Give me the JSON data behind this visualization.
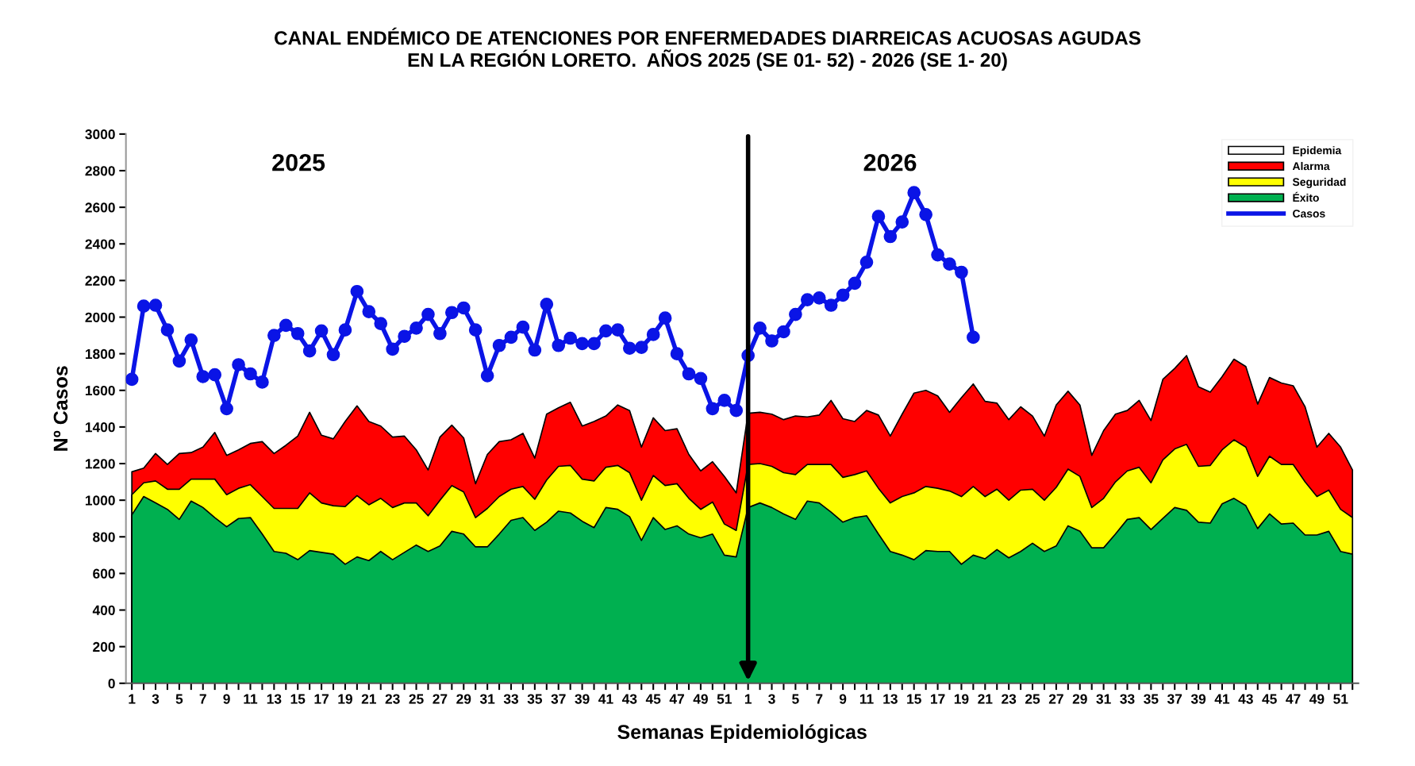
{
  "chart_data": {
    "type": "area",
    "title": "CANAL ENDÉMICO DE ATENCIONES POR ENFERMEDADES DIARREICAS ACUOSAS AGUDAS\nEN LA REGIÓN LORETO.  AÑOS 2025 (SE 01- 52) - 2026 (SE 1- 20)",
    "xlabel": "Semanas Epidemiológicas",
    "ylabel": "Nº Casos",
    "annotations": [
      "2025",
      "2026"
    ],
    "categories": [
      "1",
      null,
      "3",
      null,
      "5",
      null,
      "7",
      null,
      "9",
      null,
      "11",
      null,
      "13",
      null,
      "15",
      null,
      "17",
      null,
      "19",
      null,
      "21",
      null,
      "23",
      null,
      "25",
      null,
      "27",
      null,
      "29",
      null,
      "31",
      null,
      "33",
      null,
      "35",
      null,
      "37",
      null,
      "39",
      null,
      "41",
      null,
      "43",
      null,
      "45",
      null,
      "47",
      null,
      "49",
      null,
      "51",
      null,
      "1",
      null,
      "3",
      null,
      "5",
      null,
      "7",
      null,
      "9",
      null,
      "11",
      null,
      "13",
      null,
      "15",
      null,
      "17",
      null,
      "19",
      null,
      "21",
      null,
      "23",
      null,
      "25",
      null,
      "27",
      null,
      "29",
      null,
      "31",
      null,
      "33",
      null,
      "35",
      null,
      "37",
      null,
      "39",
      null,
      "41",
      null,
      "43",
      null,
      "45",
      null,
      "47",
      null,
      "49",
      null,
      "51",
      null
    ],
    "series": [
      {
        "name": "Epidemia",
        "color": "#ffffff",
        "values": [
          null,
          null,
          null,
          null,
          null,
          null,
          null,
          null,
          null,
          null,
          null,
          null,
          null,
          null,
          null,
          null,
          null,
          null,
          null,
          null,
          null,
          null,
          null,
          null,
          null,
          null,
          null,
          null,
          null,
          null,
          null,
          null,
          null,
          null,
          null,
          null,
          null,
          null,
          null,
          null,
          null,
          null,
          null,
          null,
          null,
          null,
          null,
          null,
          null,
          null,
          null,
          null,
          null,
          null,
          null,
          null,
          null,
          null,
          null,
          null,
          null,
          null,
          null,
          null,
          null,
          null,
          null,
          null,
          null,
          null,
          null,
          null,
          null,
          null,
          null,
          null,
          null,
          null,
          null,
          null,
          null,
          null,
          null,
          null,
          null,
          null,
          null,
          null,
          null,
          null,
          null,
          null,
          null,
          null,
          null,
          null,
          null,
          null,
          null,
          null,
          null,
          null,
          null,
          null
        ]
      },
      {
        "name": "Alarma",
        "color": "#ff0000",
        "values": [
          1155,
          1175,
          1255,
          1195,
          1255,
          1260,
          1290,
          1370,
          1245,
          1275,
          1310,
          1320,
          1255,
          1300,
          1350,
          1480,
          1355,
          1335,
          1430,
          1515,
          1430,
          1405,
          1345,
          1350,
          1275,
          1165,
          1345,
          1410,
          1340,
          1090,
          1250,
          1320,
          1330,
          1365,
          1230,
          1470,
          1505,
          1535,
          1405,
          1430,
          1460,
          1520,
          1490,
          1290,
          1450,
          1380,
          1390,
          1250,
          1160,
          1210,
          1130,
          1040,
          1475,
          1480,
          1470,
          1440,
          1460,
          1455,
          1465,
          1545,
          1445,
          1430,
          1490,
          1465,
          1350,
          1470,
          1585,
          1600,
          1570,
          1480,
          1560,
          1635,
          1540,
          1530,
          1440,
          1510,
          1460,
          1350,
          1520,
          1595,
          1520,
          1245,
          1380,
          1470,
          1490,
          1545,
          1435,
          1660,
          1720,
          1790,
          1620,
          1590,
          1675,
          1770,
          1730,
          1525,
          1670,
          1640,
          1625,
          1510,
          1290,
          1365,
          1290,
          1165
        ]
      },
      {
        "name": "Seguridad",
        "color": "#ffff00",
        "values": [
          1030,
          1095,
          1105,
          1060,
          1060,
          1115,
          1115,
          1115,
          1030,
          1065,
          1085,
          1020,
          955,
          955,
          955,
          1040,
          985,
          970,
          965,
          1025,
          975,
          1010,
          960,
          985,
          985,
          915,
          1000,
          1080,
          1045,
          905,
          955,
          1020,
          1060,
          1075,
          1005,
          1110,
          1185,
          1190,
          1115,
          1105,
          1180,
          1190,
          1150,
          1000,
          1135,
          1080,
          1090,
          1010,
          950,
          990,
          870,
          835,
          1195,
          1200,
          1185,
          1150,
          1140,
          1195,
          1195,
          1195,
          1125,
          1140,
          1160,
          1065,
          985,
          1020,
          1040,
          1075,
          1065,
          1050,
          1020,
          1075,
          1020,
          1060,
          1000,
          1055,
          1060,
          1000,
          1070,
          1170,
          1130,
          960,
          1010,
          1100,
          1160,
          1180,
          1095,
          1220,
          1280,
          1305,
          1185,
          1190,
          1275,
          1330,
          1290,
          1130,
          1240,
          1195,
          1195,
          1100,
          1020,
          1055,
          950,
          905
        ]
      },
      {
        "name": "Éxito",
        "color": "#00b050",
        "values": [
          920,
          1020,
          985,
          950,
          895,
          995,
          960,
          905,
          855,
          900,
          905,
          815,
          720,
          710,
          675,
          725,
          715,
          705,
          650,
          690,
          670,
          720,
          675,
          715,
          755,
          720,
          750,
          830,
          815,
          745,
          745,
          815,
          890,
          905,
          835,
          880,
          940,
          930,
          885,
          850,
          960,
          950,
          910,
          780,
          905,
          840,
          860,
          815,
          795,
          815,
          700,
          690,
          960,
          985,
          960,
          925,
          895,
          995,
          985,
          935,
          880,
          905,
          915,
          815,
          720,
          700,
          675,
          725,
          720,
          720,
          650,
          700,
          680,
          730,
          685,
          720,
          765,
          720,
          750,
          860,
          830,
          740,
          740,
          815,
          895,
          905,
          840,
          900,
          960,
          945,
          880,
          875,
          980,
          1010,
          970,
          845,
          925,
          870,
          875,
          810,
          810,
          830,
          720,
          705
        ]
      },
      {
        "name": "Casos",
        "type": "line",
        "marker": "circle",
        "color": "#0a14e6",
        "values": [
          1660,
          2060,
          2065,
          1930,
          1760,
          1875,
          1675,
          1685,
          1500,
          1740,
          1690,
          1645,
          1900,
          1955,
          1910,
          1815,
          1925,
          1795,
          1930,
          2140,
          2030,
          1965,
          1825,
          1895,
          1940,
          2015,
          1910,
          2025,
          2050,
          1930,
          1680,
          1845,
          1890,
          1945,
          1820,
          2070,
          1845,
          1885,
          1855,
          1855,
          1925,
          1930,
          1830,
          1835,
          1905,
          1995,
          1800,
          1690,
          1665,
          1500,
          1545,
          1490,
          1790,
          1940,
          1870,
          1920,
          2015,
          2095,
          2105,
          2065,
          2120,
          2185,
          2300,
          2550,
          2440,
          2520,
          2680,
          2560,
          2340,
          2290,
          2245,
          1890,
          null,
          null,
          null,
          null,
          null,
          null,
          null,
          null,
          null,
          null,
          null,
          null,
          null,
          null,
          null,
          null,
          null,
          null,
          null,
          null,
          null,
          null,
          null,
          null,
          null,
          null,
          null,
          null,
          null,
          null,
          null,
          null
        ]
      }
    ],
    "ylim": [
      0,
      3000
    ],
    "yticks": [
      0,
      200,
      400,
      600,
      800,
      1000,
      1200,
      1400,
      1600,
      1800,
      2000,
      2200,
      2400,
      2600,
      2800,
      3000
    ],
    "line_style": "solid",
    "grid": false,
    "legend": "top right"
  }
}
